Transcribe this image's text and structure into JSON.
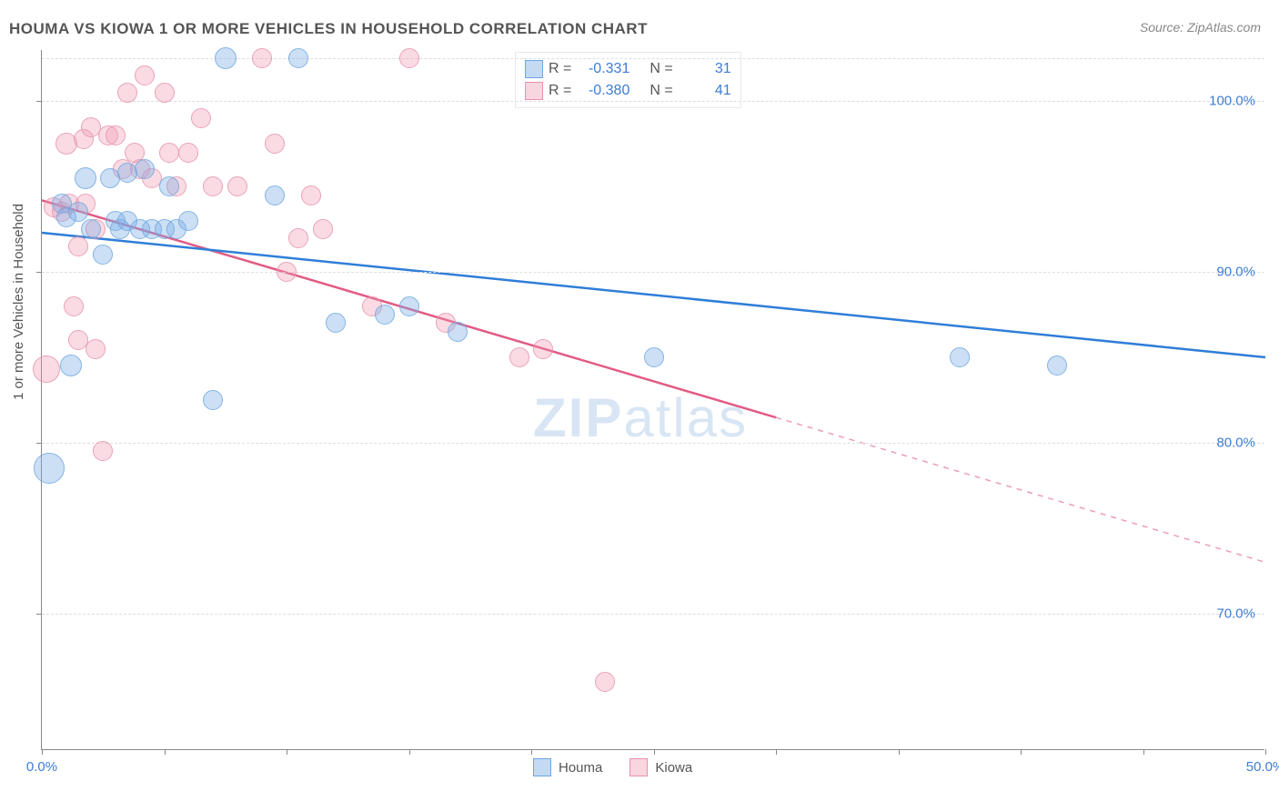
{
  "title": "HOUMA VS KIOWA 1 OR MORE VEHICLES IN HOUSEHOLD CORRELATION CHART",
  "source": "Source: ZipAtlas.com",
  "yaxis_label": "1 or more Vehicles in Household",
  "watermark_a": "ZIP",
  "watermark_b": "atlas",
  "chart": {
    "type": "scatter",
    "xlim": [
      0,
      50
    ],
    "ylim": [
      62,
      103
    ],
    "xticks": [
      0,
      5,
      10,
      15,
      20,
      25,
      30,
      35,
      40,
      45,
      50
    ],
    "xtick_labels_shown": {
      "0": "0.0%",
      "50": "50.0%"
    },
    "yticks": [
      70,
      80,
      90,
      100
    ],
    "ytick_labels": {
      "70": "70.0%",
      "80": "80.0%",
      "90": "90.0%",
      "100": "100.0%"
    },
    "grid_color": "#dddddd",
    "background_color": "#ffffff",
    "title_fontsize": 17,
    "label_fontsize": 15,
    "tick_color": "#3b7dd8"
  },
  "series": {
    "houma": {
      "label": "Houma",
      "fill": "rgba(122,172,230,0.45)",
      "stroke": "#6ea7df",
      "line_color": "#2f7ed8",
      "r_label": "R =",
      "r_value": "-0.331",
      "n_label": "N =",
      "n_value": "31",
      "trend": {
        "x1": 0,
        "y1": 92.3,
        "x2": 50,
        "y2": 85.0,
        "dash_from_x": 50
      },
      "points": [
        {
          "x": 0.3,
          "y": 78.5,
          "r": 16
        },
        {
          "x": 1.2,
          "y": 84.5,
          "r": 11
        },
        {
          "x": 0.8,
          "y": 94.0,
          "r": 10
        },
        {
          "x": 1.0,
          "y": 93.2,
          "r": 10
        },
        {
          "x": 1.5,
          "y": 93.5,
          "r": 10
        },
        {
          "x": 1.8,
          "y": 95.5,
          "r": 11
        },
        {
          "x": 2.0,
          "y": 92.5,
          "r": 10
        },
        {
          "x": 2.5,
          "y": 91.0,
          "r": 10
        },
        {
          "x": 2.8,
          "y": 95.5,
          "r": 10
        },
        {
          "x": 3.0,
          "y": 93.0,
          "r": 10
        },
        {
          "x": 3.2,
          "y": 92.5,
          "r": 10
        },
        {
          "x": 3.5,
          "y": 95.8,
          "r": 10
        },
        {
          "x": 3.5,
          "y": 93.0,
          "r": 10
        },
        {
          "x": 4.0,
          "y": 92.5,
          "r": 10
        },
        {
          "x": 4.2,
          "y": 96.0,
          "r": 10
        },
        {
          "x": 4.5,
          "y": 92.5,
          "r": 10
        },
        {
          "x": 5.0,
          "y": 92.5,
          "r": 10
        },
        {
          "x": 5.2,
          "y": 95.0,
          "r": 10
        },
        {
          "x": 5.5,
          "y": 92.5,
          "r": 10
        },
        {
          "x": 6.0,
          "y": 93.0,
          "r": 10
        },
        {
          "x": 7.0,
          "y": 82.5,
          "r": 10
        },
        {
          "x": 7.5,
          "y": 102.5,
          "r": 11
        },
        {
          "x": 9.5,
          "y": 94.5,
          "r": 10
        },
        {
          "x": 10.5,
          "y": 102.5,
          "r": 10
        },
        {
          "x": 12.0,
          "y": 87.0,
          "r": 10
        },
        {
          "x": 15.0,
          "y": 88.0,
          "r": 10
        },
        {
          "x": 14.0,
          "y": 87.5,
          "r": 10
        },
        {
          "x": 17.0,
          "y": 86.5,
          "r": 10
        },
        {
          "x": 25.0,
          "y": 85.0,
          "r": 10
        },
        {
          "x": 37.5,
          "y": 85.0,
          "r": 10
        },
        {
          "x": 41.5,
          "y": 84.5,
          "r": 10
        }
      ]
    },
    "kiowa": {
      "label": "Kiowa",
      "fill": "rgba(240,150,175,0.40)",
      "stroke": "#e692ac",
      "line_color": "#e25b84",
      "r_label": "R =",
      "r_value": "-0.380",
      "n_label": "N =",
      "n_value": "41",
      "trend": {
        "x1": 0,
        "y1": 94.2,
        "x2": 50,
        "y2": 73.0,
        "dash_from_x": 30
      },
      "points": [
        {
          "x": 0.2,
          "y": 84.3,
          "r": 14
        },
        {
          "x": 0.5,
          "y": 93.8,
          "r": 10
        },
        {
          "x": 0.8,
          "y": 93.5,
          "r": 10
        },
        {
          "x": 1.0,
          "y": 97.5,
          "r": 11
        },
        {
          "x": 1.1,
          "y": 94.0,
          "r": 10
        },
        {
          "x": 1.3,
          "y": 88.0,
          "r": 10
        },
        {
          "x": 1.5,
          "y": 91.5,
          "r": 10
        },
        {
          "x": 1.5,
          "y": 86.0,
          "r": 10
        },
        {
          "x": 1.7,
          "y": 97.8,
          "r": 10
        },
        {
          "x": 1.8,
          "y": 94.0,
          "r": 10
        },
        {
          "x": 2.0,
          "y": 98.5,
          "r": 10
        },
        {
          "x": 2.2,
          "y": 85.5,
          "r": 10
        },
        {
          "x": 2.2,
          "y": 92.5,
          "r": 10
        },
        {
          "x": 2.5,
          "y": 79.5,
          "r": 10
        },
        {
          "x": 2.7,
          "y": 98.0,
          "r": 10
        },
        {
          "x": 3.0,
          "y": 98.0,
          "r": 10
        },
        {
          "x": 3.3,
          "y": 96.0,
          "r": 10
        },
        {
          "x": 3.5,
          "y": 100.5,
          "r": 10
        },
        {
          "x": 3.8,
          "y": 97.0,
          "r": 10
        },
        {
          "x": 4.0,
          "y": 96.0,
          "r": 10
        },
        {
          "x": 4.2,
          "y": 101.5,
          "r": 10
        },
        {
          "x": 4.5,
          "y": 95.5,
          "r": 10
        },
        {
          "x": 5.0,
          "y": 100.5,
          "r": 10
        },
        {
          "x": 5.2,
          "y": 97.0,
          "r": 10
        },
        {
          "x": 5.5,
          "y": 95.0,
          "r": 10
        },
        {
          "x": 6.0,
          "y": 97.0,
          "r": 10
        },
        {
          "x": 6.5,
          "y": 99.0,
          "r": 10
        },
        {
          "x": 7.0,
          "y": 95.0,
          "r": 10
        },
        {
          "x": 8.0,
          "y": 95.0,
          "r": 10
        },
        {
          "x": 9.0,
          "y": 102.5,
          "r": 10
        },
        {
          "x": 9.5,
          "y": 97.5,
          "r": 10
        },
        {
          "x": 10.0,
          "y": 90.0,
          "r": 10
        },
        {
          "x": 10.5,
          "y": 92.0,
          "r": 10
        },
        {
          "x": 11.0,
          "y": 94.5,
          "r": 10
        },
        {
          "x": 11.5,
          "y": 92.5,
          "r": 10
        },
        {
          "x": 13.5,
          "y": 88.0,
          "r": 10
        },
        {
          "x": 15.0,
          "y": 102.5,
          "r": 10
        },
        {
          "x": 16.5,
          "y": 87.0,
          "r": 10
        },
        {
          "x": 19.5,
          "y": 85.0,
          "r": 10
        },
        {
          "x": 20.5,
          "y": 85.5,
          "r": 10
        },
        {
          "x": 23.0,
          "y": 66.0,
          "r": 10
        }
      ]
    }
  }
}
